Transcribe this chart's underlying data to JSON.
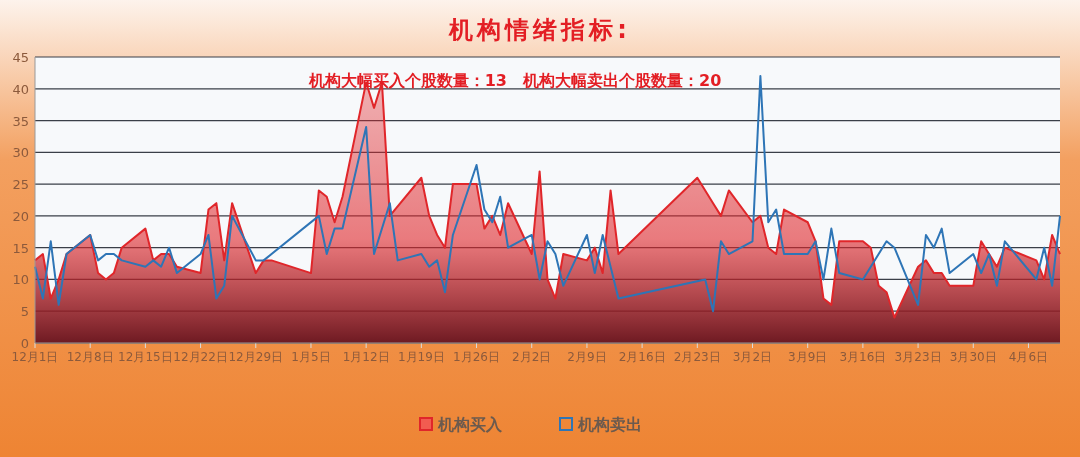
{
  "chart_data": {
    "type": "area",
    "title": "机构情绪指标:",
    "annotations": [
      "机构大幅买入个股数量：13　机构大幅卖出个股数量：20"
    ],
    "ylim": [
      0,
      45
    ],
    "yticks": [
      0,
      5,
      10,
      15,
      20,
      25,
      30,
      35,
      40,
      45
    ],
    "categories": [
      "12月1日",
      null,
      null,
      null,
      null,
      null,
      null,
      "12月8日",
      null,
      null,
      null,
      null,
      null,
      null,
      "12月15日",
      null,
      null,
      null,
      null,
      null,
      null,
      "12月22日",
      null,
      null,
      null,
      null,
      null,
      null,
      "12月29日",
      null,
      null,
      null,
      null,
      null,
      null,
      "1月5日",
      null,
      null,
      null,
      null,
      null,
      null,
      "1月12日",
      null,
      null,
      null,
      null,
      null,
      null,
      "1月19日",
      null,
      null,
      null,
      null,
      null,
      null,
      "1月26日",
      null,
      null,
      null,
      null,
      null,
      null,
      "2月2日",
      null,
      null,
      null,
      null,
      null,
      null,
      "2月9日",
      null,
      null,
      null,
      null,
      null,
      null,
      "2月16日",
      null,
      null,
      null,
      null,
      null,
      null,
      "2月23日",
      null,
      null,
      null,
      null,
      null,
      null,
      "3月2日",
      null,
      null,
      null,
      null,
      null,
      null,
      "3月9日",
      null,
      null,
      null,
      null,
      null,
      null,
      "3月16日",
      null,
      null,
      null,
      null,
      null,
      null,
      "3月23日",
      null,
      null,
      null,
      null,
      null,
      null,
      "3月30日",
      null,
      null,
      null,
      null,
      null,
      null,
      "4月6日",
      null,
      null,
      null,
      null
    ],
    "grid": "y",
    "legend": "bottom",
    "series": [
      {
        "name": "机构买入",
        "color": "#e0262a",
        "values": [
          13,
          14,
          7,
          10,
          14,
          null,
          null,
          17,
          11,
          10,
          11,
          15,
          null,
          null,
          18,
          13,
          14,
          14,
          12,
          null,
          null,
          11,
          21,
          22,
          13,
          22,
          null,
          null,
          11,
          13,
          13,
          null,
          null,
          null,
          null,
          11,
          24,
          23,
          19,
          23,
          null,
          null,
          41,
          37,
          41,
          20,
          null,
          null,
          null,
          26,
          20,
          17,
          15,
          25,
          null,
          null,
          25,
          18,
          20,
          17,
          22,
          null,
          null,
          14,
          27,
          10,
          7,
          14,
          null,
          null,
          13,
          15,
          11,
          24,
          14,
          null,
          null,
          null,
          null,
          null,
          null,
          null,
          null,
          null,
          26,
          null,
          22,
          20,
          24,
          null,
          null,
          19,
          20,
          15,
          14,
          21,
          null,
          null,
          19,
          16,
          7,
          6,
          16,
          null,
          null,
          16,
          15,
          9,
          8,
          4,
          null,
          null,
          12,
          13,
          11,
          11,
          9,
          null,
          null,
          9,
          16,
          14,
          12,
          15,
          null,
          null,
          null,
          13,
          10,
          17,
          14
        ]
      },
      {
        "name": "机构卖出",
        "type": "line",
        "color": "#2e75b6",
        "values": [
          12,
          7,
          16,
          6,
          14,
          null,
          null,
          17,
          13,
          14,
          14,
          13,
          null,
          null,
          12,
          13,
          12,
          15,
          11,
          null,
          null,
          14,
          17,
          7,
          9,
          20,
          null,
          null,
          13,
          13,
          null,
          null,
          null,
          null,
          null,
          null,
          20,
          14,
          18,
          18,
          null,
          null,
          34,
          14,
          null,
          22,
          13,
          null,
          null,
          14,
          12,
          13,
          8,
          17,
          null,
          null,
          28,
          21,
          19,
          23,
          15,
          null,
          null,
          17,
          10,
          16,
          14,
          9,
          null,
          null,
          17,
          11,
          17,
          null,
          7,
          null,
          null,
          null,
          null,
          null,
          null,
          null,
          null,
          null,
          null,
          10,
          5,
          16,
          14,
          null,
          null,
          16,
          42,
          19,
          21,
          14,
          null,
          null,
          14,
          16,
          10,
          18,
          11,
          null,
          null,
          10,
          null,
          null,
          16,
          15,
          null,
          null,
          6,
          17,
          15,
          18,
          11,
          null,
          null,
          14,
          11,
          14,
          9,
          16,
          null,
          null,
          null,
          10,
          15,
          9,
          20
        ]
      }
    ]
  }
}
